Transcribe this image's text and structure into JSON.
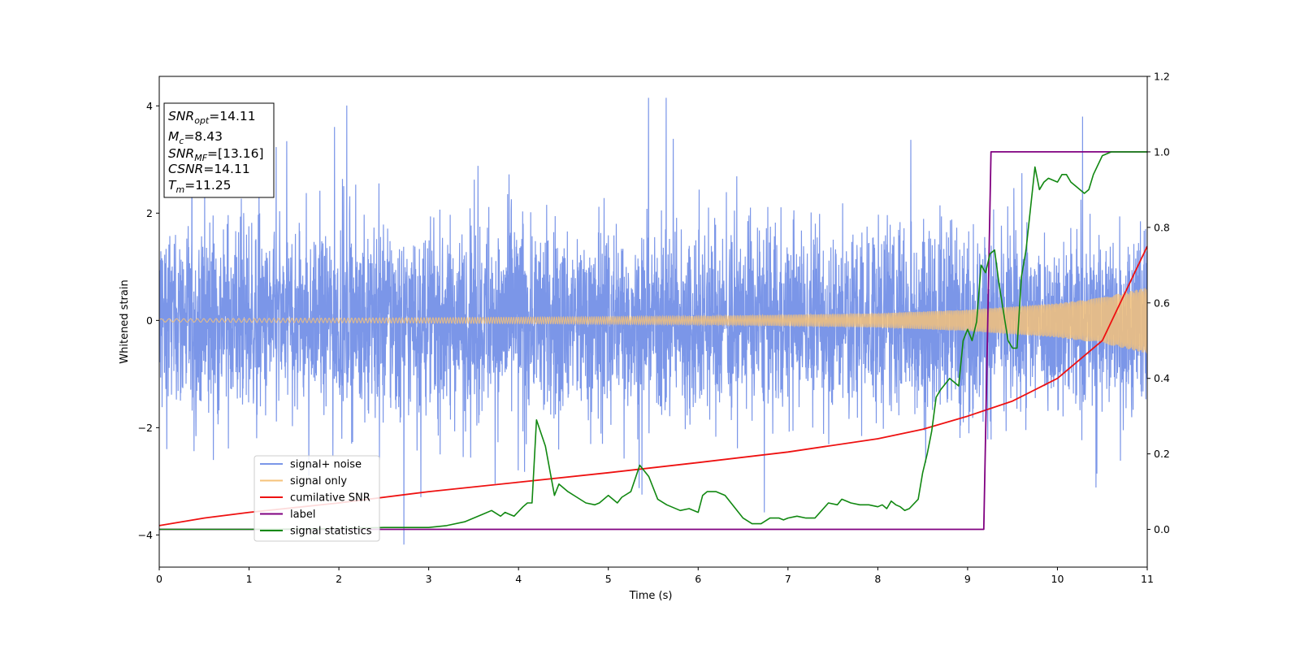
{
  "chart_data": {
    "type": "line",
    "title": "",
    "xlabel": "Time (s)",
    "ylabel_left": "Whitened strain",
    "ylabel_right": "",
    "xlim": [
      0,
      11
    ],
    "ylim_left": [
      -4.6,
      4.55
    ],
    "ylim_right": [
      -0.1,
      1.2
    ],
    "xticks": [
      "0",
      "1",
      "2",
      "3",
      "4",
      "5",
      "6",
      "7",
      "8",
      "9",
      "10",
      "11"
    ],
    "yticks_left": [
      "−4",
      "−2",
      "0",
      "2",
      "4"
    ],
    "yticks_right": [
      "0.0",
      "0.2",
      "0.4",
      "0.6",
      "0.8",
      "1.0",
      "1.2"
    ],
    "grid": false,
    "legend_position": "lower-left",
    "annotation": {
      "lines": [
        {
          "main": "SNR",
          "sub": "opt",
          "rest": "=14.11"
        },
        {
          "main": "M",
          "sub": "c",
          "rest": "=8.43"
        },
        {
          "main": "SNR",
          "sub": "MF",
          "rest": "=[13.16]"
        },
        {
          "main": "CSNR",
          "sub": "",
          "rest": "=14.11"
        },
        {
          "main": "T",
          "sub": "m",
          "rest": "=11.25"
        }
      ]
    },
    "series": [
      {
        "name": "signal+ noise",
        "axis": "left",
        "color": "#7b96e8",
        "kind": "noise_band",
        "base_amplitude": 1.25,
        "peak_max": 4.15,
        "peak_min": -4.18
      },
      {
        "name": "signal only",
        "axis": "left",
        "color": "#f5c27a",
        "kind": "chirp",
        "amplitude_points": [
          [
            0,
            0.03
          ],
          [
            3,
            0.05
          ],
          [
            6,
            0.08
          ],
          [
            8,
            0.13
          ],
          [
            9,
            0.2
          ],
          [
            10,
            0.32
          ],
          [
            10.5,
            0.43
          ],
          [
            11,
            0.62
          ]
        ]
      },
      {
        "name": "cumilative SNR",
        "axis": "right",
        "color": "#ee1111",
        "x": [
          0,
          0.5,
          1,
          2,
          3,
          4,
          5,
          6,
          7,
          8,
          8.5,
          9,
          9.5,
          10,
          10.5,
          11
        ],
        "y": [
          0.01,
          0.03,
          0.045,
          0.07,
          0.1,
          0.125,
          0.15,
          0.177,
          0.205,
          0.24,
          0.265,
          0.3,
          0.34,
          0.4,
          0.5,
          0.75
        ]
      },
      {
        "name": "label",
        "axis": "right",
        "color": "#800080",
        "x": [
          0,
          9.18,
          9.26,
          11
        ],
        "y": [
          0,
          0,
          1,
          1
        ]
      },
      {
        "name": "signal statistics",
        "axis": "right",
        "color": "#118811",
        "x": [
          0,
          1,
          2,
          2.5,
          3,
          3.2,
          3.4,
          3.6,
          3.7,
          3.8,
          3.85,
          3.9,
          3.95,
          4.05,
          4.1,
          4.15,
          4.2,
          4.3,
          4.4,
          4.45,
          4.55,
          4.65,
          4.75,
          4.85,
          4.9,
          5.0,
          5.1,
          5.15,
          5.25,
          5.35,
          5.45,
          5.55,
          5.65,
          5.8,
          5.9,
          6.0,
          6.05,
          6.1,
          6.2,
          6.3,
          6.4,
          6.5,
          6.6,
          6.7,
          6.8,
          6.9,
          6.95,
          7.0,
          7.1,
          7.2,
          7.3,
          7.45,
          7.55,
          7.6,
          7.7,
          7.8,
          7.9,
          8.0,
          8.05,
          8.1,
          8.15,
          8.2,
          8.25,
          8.3,
          8.35,
          8.45,
          8.5,
          8.55,
          8.6,
          8.65,
          8.7,
          8.8,
          8.9,
          8.95,
          9.0,
          9.05,
          9.1,
          9.15,
          9.2,
          9.25,
          9.3,
          9.35,
          9.45,
          9.5,
          9.55,
          9.6,
          9.65,
          9.75,
          9.8,
          9.85,
          9.9,
          10.0,
          10.05,
          10.1,
          10.15,
          10.2,
          10.25,
          10.3,
          10.35,
          10.4,
          10.5,
          10.6,
          10.7,
          11
        ],
        "y": [
          0,
          0,
          0.002,
          0.005,
          0.005,
          0.01,
          0.02,
          0.04,
          0.05,
          0.035,
          0.045,
          0.04,
          0.035,
          0.06,
          0.07,
          0.07,
          0.29,
          0.22,
          0.09,
          0.12,
          0.1,
          0.085,
          0.07,
          0.065,
          0.07,
          0.09,
          0.07,
          0.085,
          0.1,
          0.17,
          0.14,
          0.08,
          0.065,
          0.05,
          0.055,
          0.045,
          0.09,
          0.1,
          0.1,
          0.09,
          0.06,
          0.03,
          0.015,
          0.015,
          0.03,
          0.03,
          0.025,
          0.03,
          0.035,
          0.03,
          0.03,
          0.07,
          0.065,
          0.08,
          0.07,
          0.065,
          0.065,
          0.06,
          0.065,
          0.055,
          0.075,
          0.065,
          0.06,
          0.05,
          0.055,
          0.08,
          0.15,
          0.2,
          0.26,
          0.35,
          0.37,
          0.4,
          0.38,
          0.5,
          0.53,
          0.5,
          0.55,
          0.7,
          0.68,
          0.73,
          0.74,
          0.65,
          0.5,
          0.48,
          0.48,
          0.67,
          0.74,
          0.96,
          0.9,
          0.92,
          0.93,
          0.92,
          0.94,
          0.94,
          0.92,
          0.91,
          0.9,
          0.89,
          0.9,
          0.94,
          0.99,
          1.0,
          1.0,
          1.0
        ]
      }
    ]
  }
}
